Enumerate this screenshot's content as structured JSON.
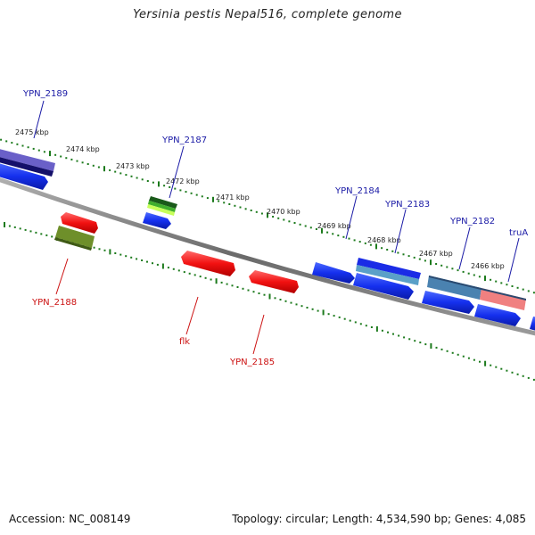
{
  "title": "Yersinia pestis Nepal516, complete genome",
  "footer": {
    "accession": "Accession: NC_008149",
    "summary": "Topology: circular; Length: 4,534,590 bp; Genes: 4,085"
  },
  "colors": {
    "forward_label": "#1a1aa6",
    "reverse_label": "#cc1111",
    "tick": "#1c7a1c",
    "backbone": "#777777"
  },
  "ruler_labels": [
    "2475 kbp",
    "2474 kbp",
    "2473 kbp",
    "2472 kbp",
    "2471 kbp",
    "2470 kbp",
    "2469 kbp",
    "2468 kbp",
    "2467 kbp",
    "2466 kbp"
  ],
  "gene_labels": {
    "forward": [
      "YPN_2189",
      "YPN_2187",
      "YPN_2184",
      "YPN_2183",
      "YPN_2182",
      "truA"
    ],
    "reverse": [
      "YPN_2188",
      "flk",
      "YPN_2185"
    ]
  }
}
